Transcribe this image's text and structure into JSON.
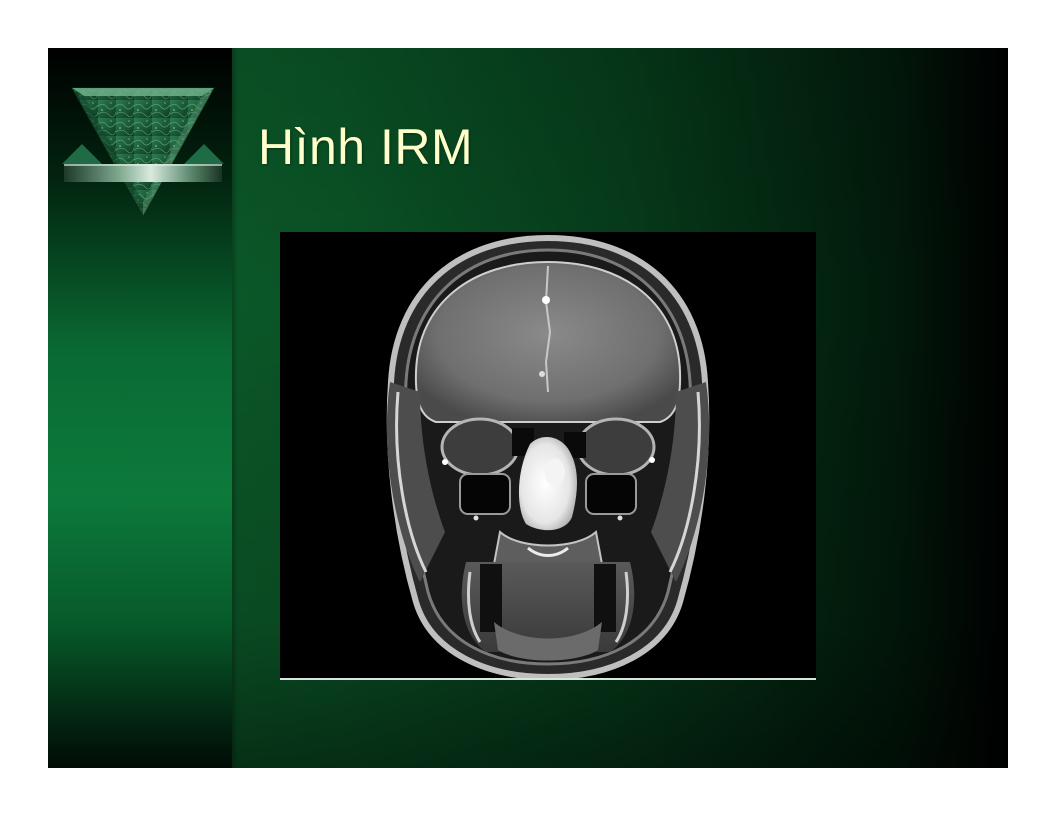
{
  "slide": {
    "title": "Hình IRM"
  },
  "logo": {
    "icon": "green-marble-triangle-logo"
  },
  "image": {
    "icon": "mri-coronal-head-scan"
  },
  "colors": {
    "title_text": "#ffffcc",
    "background_green": "#0a5326",
    "sidebar_green": "#0c7a3b"
  }
}
